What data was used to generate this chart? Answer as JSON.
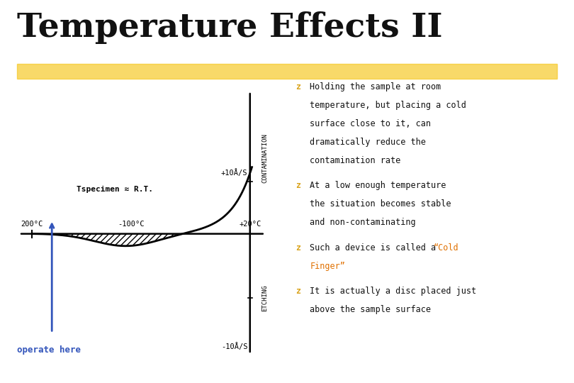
{
  "title": "Temperature Effects II",
  "title_fontsize": 34,
  "background_color": "#ffffff",
  "highlight_color": "#F5C518",
  "bullet_color": "#DAA520",
  "text_color": "#111111",
  "blue_color": "#3355BB",
  "orange_color": "#E07000",
  "graph": {
    "plus10": "+10Å/S",
    "minus10": "-10Å/S",
    "plus20c": "+20°C",
    "minus100c": "-100°C",
    "minus200c": "200°C",
    "specimen": "Tspecimen ≈ R.T.",
    "contamination": "CONTAMINATION",
    "etching": "ETCHING",
    "operate": "operate here"
  },
  "bullets": [
    [
      "Holding the sample at room",
      "temperature, but placing a cold",
      "surface close to it, can",
      "dramatically reduce the",
      "contamination rate"
    ],
    [
      "At a low enough temperature",
      "the situation becomes stable",
      "and non-contaminating"
    ],
    [
      "cold_finger"
    ],
    [
      "It is actually a disc placed just",
      "above the sample surface"
    ]
  ]
}
